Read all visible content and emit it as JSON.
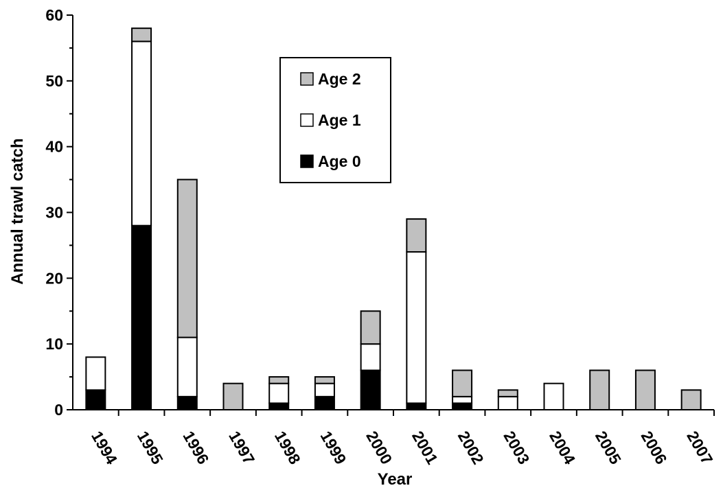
{
  "chart_data": {
    "type": "bar",
    "stacked": true,
    "title": "",
    "xlabel": "Year",
    "ylabel": "Annual trawl catch",
    "ylim": [
      0,
      60
    ],
    "yticks": [
      0,
      10,
      20,
      30,
      40,
      50,
      60
    ],
    "categories": [
      "1994",
      "1995",
      "1996",
      "1997",
      "1998",
      "1999",
      "2000",
      "2001",
      "2002",
      "2003",
      "2004",
      "2005",
      "2006",
      "2007"
    ],
    "series": [
      {
        "name": "Age 0",
        "color": "#000000",
        "values": [
          3,
          28,
          2,
          0,
          1,
          2,
          6,
          1,
          1,
          0,
          0,
          0,
          0,
          0
        ]
      },
      {
        "name": "Age 1",
        "color": "#ffffff",
        "values": [
          5,
          28,
          9,
          0,
          3,
          2,
          4,
          23,
          1,
          2,
          4,
          0,
          0,
          0
        ]
      },
      {
        "name": "Age 2",
        "color": "#c0c0c0",
        "values": [
          0,
          2,
          24,
          4,
          1,
          1,
          5,
          5,
          4,
          1,
          0,
          6,
          6,
          3
        ]
      }
    ],
    "legend": {
      "placement": "top-center",
      "order": [
        "Age 2",
        "Age 1",
        "Age 0"
      ]
    },
    "grid": false
  }
}
